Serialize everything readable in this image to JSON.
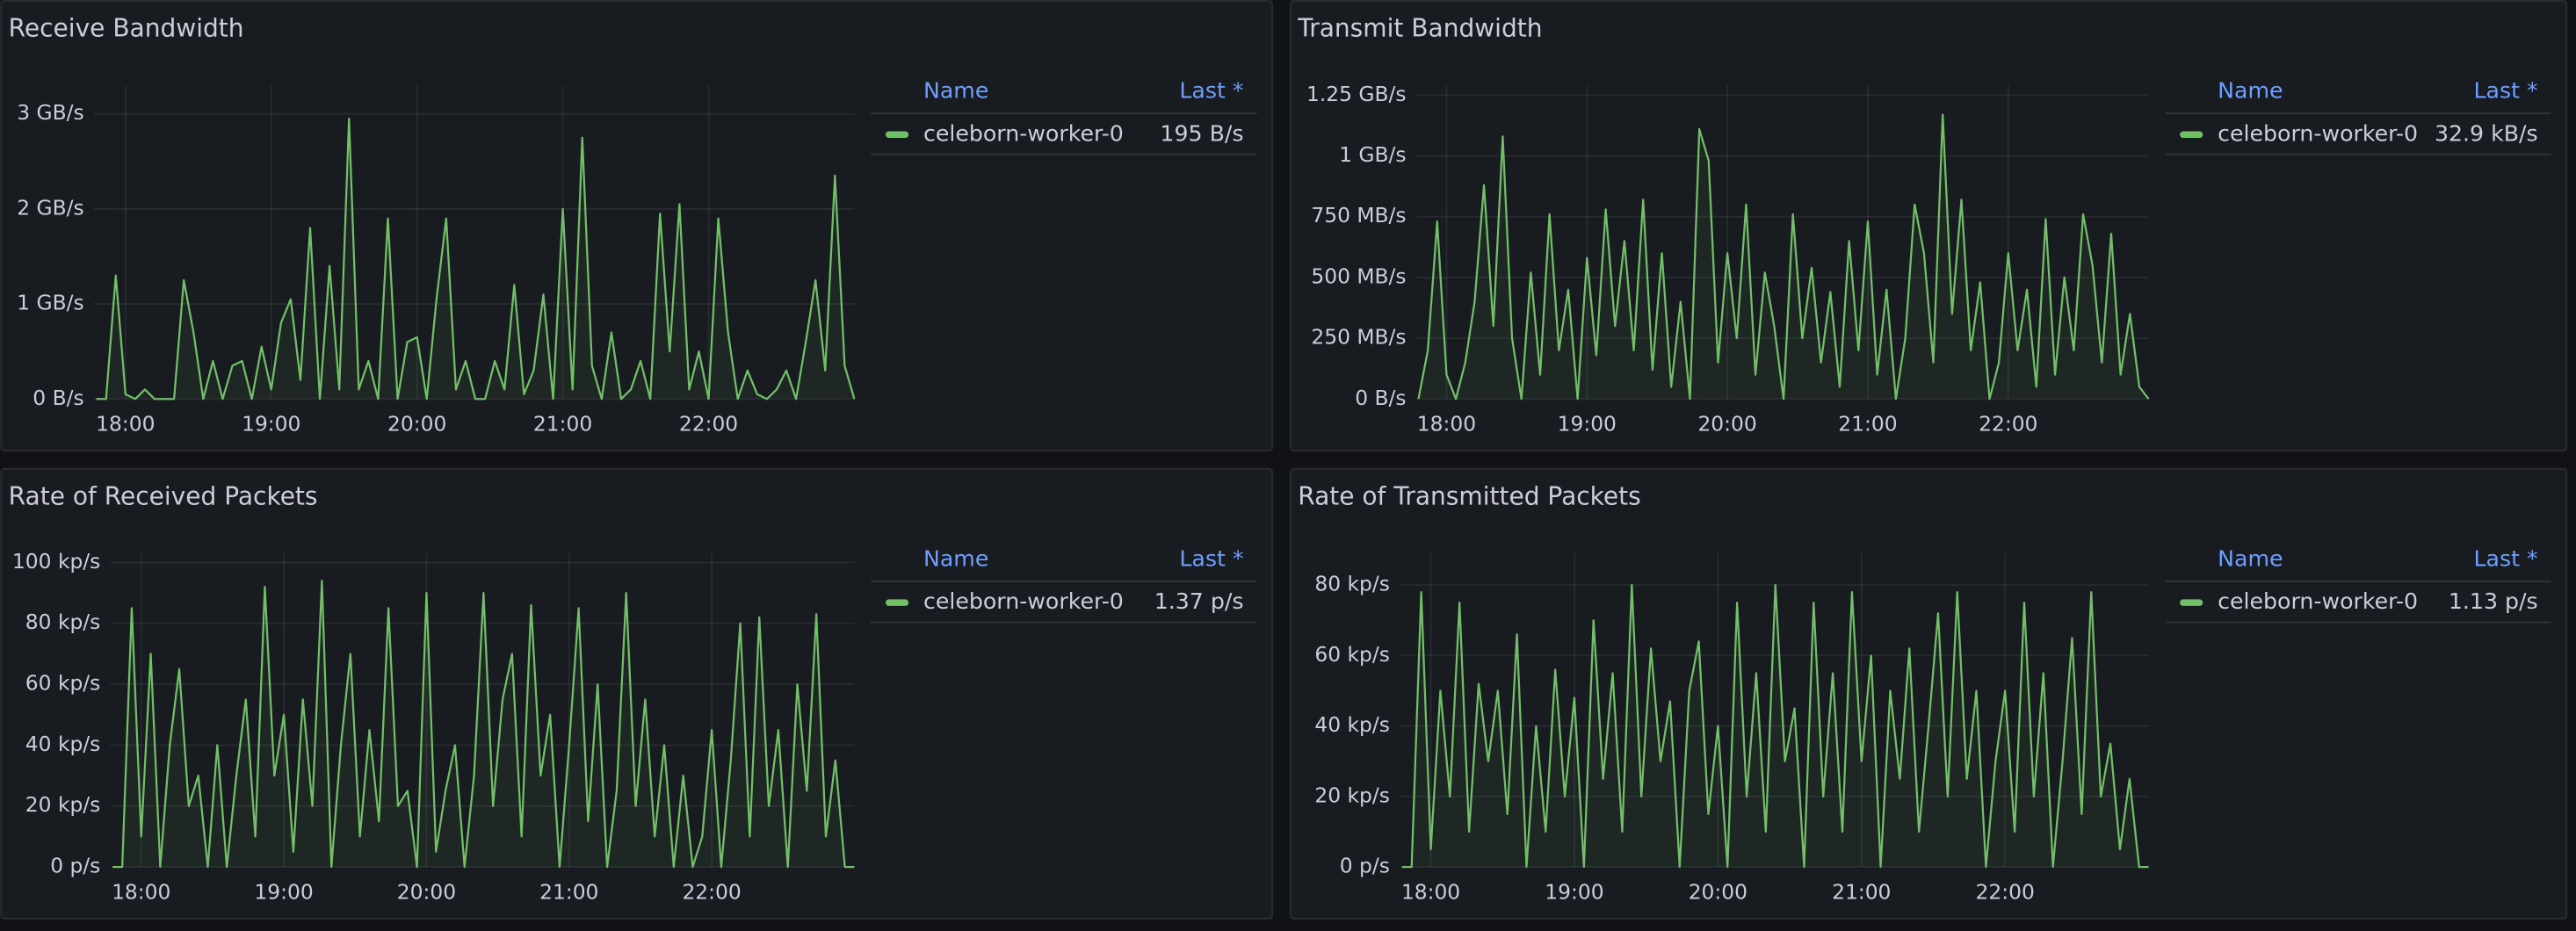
{
  "chart_data": [
    {
      "type": "line",
      "title": "Receive Bandwidth",
      "legend": {
        "headers": [
          "Name",
          "Last *"
        ]
      },
      "xlim": [
        1067,
        1380
      ],
      "xticks": [
        {
          "value": 1080,
          "label": "18:00"
        },
        {
          "value": 1140,
          "label": "19:00"
        },
        {
          "value": 1200,
          "label": "20:00"
        },
        {
          "value": 1260,
          "label": "21:00"
        },
        {
          "value": 1320,
          "label": "22:00"
        }
      ],
      "ylim": [
        0,
        3300000000.0
      ],
      "yticks": [
        {
          "value": 0,
          "label": "0 B/s"
        },
        {
          "value": 1000000000.0,
          "label": "1 GB/s"
        },
        {
          "value": 2000000000.0,
          "label": "2 GB/s"
        },
        {
          "value": 3000000000.0,
          "label": "3 GB/s"
        }
      ],
      "grid": true,
      "x": [
        1068,
        1072,
        1076,
        1080,
        1084,
        1088,
        1092,
        1096,
        1100,
        1104,
        1108,
        1112,
        1116,
        1120,
        1124,
        1128,
        1132,
        1136,
        1140,
        1144,
        1148,
        1152,
        1156,
        1160,
        1164,
        1168,
        1172,
        1176,
        1180,
        1184,
        1188,
        1192,
        1196,
        1200,
        1204,
        1208,
        1212,
        1216,
        1220,
        1224,
        1228,
        1232,
        1236,
        1240,
        1244,
        1248,
        1252,
        1256,
        1260,
        1264,
        1268,
        1272,
        1276,
        1280,
        1284,
        1288,
        1292,
        1296,
        1300,
        1304,
        1308,
        1312,
        1316,
        1320,
        1324,
        1328,
        1332,
        1336,
        1340,
        1344,
        1348,
        1352,
        1356,
        1360,
        1364,
        1368,
        1372,
        1376,
        1380
      ],
      "series": [
        {
          "name": "celeborn-worker-0",
          "color": "#73bf69",
          "last": {
            "value": 195,
            "label": "195 B/s"
          },
          "values": [
            0,
            0,
            1300000000.0,
            50000000.0,
            0,
            100000000.0,
            0,
            0,
            0,
            1250000000.0,
            700000000.0,
            0,
            400000000.0,
            0,
            350000000.0,
            400000000.0,
            0,
            550000000.0,
            100000000.0,
            800000000.0,
            1050000000.0,
            200000000.0,
            1800000000.0,
            0,
            1400000000.0,
            100000000.0,
            2950000000.0,
            100000000.0,
            400000000.0,
            0,
            1900000000.0,
            0,
            600000000.0,
            650000000.0,
            0,
            1050000000.0,
            1900000000.0,
            100000000.0,
            400000000.0,
            0,
            0,
            400000000.0,
            100000000.0,
            1200000000.0,
            50000000.0,
            300000000.0,
            1100000000.0,
            0,
            2000000000.0,
            100000000.0,
            2750000000.0,
            350000000.0,
            0,
            700000000.0,
            0,
            100000000.0,
            400000000.0,
            0,
            1950000000.0,
            500000000.0,
            2050000000.0,
            100000000.0,
            500000000.0,
            0,
            1900000000.0,
            700000000.0,
            0,
            300000000.0,
            50000000.0,
            0,
            100000000.0,
            300000000.0,
            0,
            600000000.0,
            1250000000.0,
            300000000.0,
            2350000000.0,
            350000000.0,
            0
          ]
        }
      ]
    },
    {
      "type": "line",
      "title": "Transmit Bandwidth",
      "legend": {
        "headers": [
          "Name",
          "Last *"
        ]
      },
      "xlim": [
        1067,
        1380
      ],
      "xticks": [
        {
          "value": 1080,
          "label": "18:00"
        },
        {
          "value": 1140,
          "label": "19:00"
        },
        {
          "value": 1200,
          "label": "20:00"
        },
        {
          "value": 1260,
          "label": "21:00"
        },
        {
          "value": 1320,
          "label": "22:00"
        }
      ],
      "ylim": [
        0,
        1290000000.0
      ],
      "yticks": [
        {
          "value": 0,
          "label": "0 B/s"
        },
        {
          "value": 250000000.0,
          "label": "250 MB/s"
        },
        {
          "value": 500000000.0,
          "label": "500 MB/s"
        },
        {
          "value": 750000000.0,
          "label": "750 MB/s"
        },
        {
          "value": 1000000000.0,
          "label": "1 GB/s"
        },
        {
          "value": 1250000000.0,
          "label": "1.25 GB/s"
        }
      ],
      "grid": true,
      "x": [
        1068,
        1072,
        1076,
        1080,
        1084,
        1088,
        1092,
        1096,
        1100,
        1104,
        1108,
        1112,
        1116,
        1120,
        1124,
        1128,
        1132,
        1136,
        1140,
        1144,
        1148,
        1152,
        1156,
        1160,
        1164,
        1168,
        1172,
        1176,
        1180,
        1184,
        1188,
        1192,
        1196,
        1200,
        1204,
        1208,
        1212,
        1216,
        1220,
        1224,
        1228,
        1232,
        1236,
        1240,
        1244,
        1248,
        1252,
        1256,
        1260,
        1264,
        1268,
        1272,
        1276,
        1280,
        1284,
        1288,
        1292,
        1296,
        1300,
        1304,
        1308,
        1312,
        1316,
        1320,
        1324,
        1328,
        1332,
        1336,
        1340,
        1344,
        1348,
        1352,
        1356,
        1360,
        1364,
        1368,
        1372,
        1376,
        1380
      ],
      "series": [
        {
          "name": "celeborn-worker-0",
          "color": "#73bf69",
          "last": {
            "value": 32900,
            "label": "32.9 kB/s"
          },
          "values": [
            0,
            200000000.0,
            730000000.0,
            100000000.0,
            0,
            150000000.0,
            400000000.0,
            880000000.0,
            300000000.0,
            1080000000.0,
            250000000.0,
            0,
            520000000.0,
            100000000.0,
            760000000.0,
            200000000.0,
            450000000.0,
            0,
            580000000.0,
            180000000.0,
            780000000.0,
            300000000.0,
            650000000.0,
            200000000.0,
            820000000.0,
            120000000.0,
            600000000.0,
            50000000.0,
            400000000.0,
            0,
            1110000000.0,
            980000000.0,
            150000000.0,
            600000000.0,
            250000000.0,
            800000000.0,
            100000000.0,
            520000000.0,
            300000000.0,
            0,
            760000000.0,
            250000000.0,
            540000000.0,
            150000000.0,
            440000000.0,
            50000000.0,
            650000000.0,
            200000000.0,
            730000000.0,
            100000000.0,
            450000000.0,
            0,
            250000000.0,
            800000000.0,
            600000000.0,
            150000000.0,
            1170000000.0,
            350000000.0,
            820000000.0,
            200000000.0,
            480000000.0,
            0,
            150000000.0,
            600000000.0,
            200000000.0,
            450000000.0,
            50000000.0,
            740000000.0,
            100000000.0,
            500000000.0,
            200000000.0,
            760000000.0,
            550000000.0,
            150000000.0,
            680000000.0,
            100000000.0,
            350000000.0,
            50000000.0,
            0
          ]
        }
      ]
    },
    {
      "type": "line",
      "title": "Rate of Received Packets",
      "legend": {
        "headers": [
          "Name",
          "Last *"
        ]
      },
      "xlim": [
        1067,
        1380
      ],
      "xticks": [
        {
          "value": 1080,
          "label": "18:00"
        },
        {
          "value": 1140,
          "label": "19:00"
        },
        {
          "value": 1200,
          "label": "20:00"
        },
        {
          "value": 1260,
          "label": "21:00"
        },
        {
          "value": 1320,
          "label": "22:00"
        }
      ],
      "ylim": [
        0,
        103000
      ],
      "yticks": [
        {
          "value": 0,
          "label": "0 p/s"
        },
        {
          "value": 20000,
          "label": "20 kp/s"
        },
        {
          "value": 40000,
          "label": "40 kp/s"
        },
        {
          "value": 60000,
          "label": "60 kp/s"
        },
        {
          "value": 80000,
          "label": "80 kp/s"
        },
        {
          "value": 100000,
          "label": "100 kp/s"
        }
      ],
      "grid": true,
      "x": [
        1068,
        1072,
        1076,
        1080,
        1084,
        1088,
        1092,
        1096,
        1100,
        1104,
        1108,
        1112,
        1116,
        1120,
        1124,
        1128,
        1132,
        1136,
        1140,
        1144,
        1148,
        1152,
        1156,
        1160,
        1164,
        1168,
        1172,
        1176,
        1180,
        1184,
        1188,
        1192,
        1196,
        1200,
        1204,
        1208,
        1212,
        1216,
        1220,
        1224,
        1228,
        1232,
        1236,
        1240,
        1244,
        1248,
        1252,
        1256,
        1260,
        1264,
        1268,
        1272,
        1276,
        1280,
        1284,
        1288,
        1292,
        1296,
        1300,
        1304,
        1308,
        1312,
        1316,
        1320,
        1324,
        1328,
        1332,
        1336,
        1340,
        1344,
        1348,
        1352,
        1356,
        1360,
        1364,
        1368,
        1372,
        1376,
        1380
      ],
      "series": [
        {
          "name": "celeborn-worker-0",
          "color": "#73bf69",
          "last": {
            "value": 1.37,
            "label": "1.37 p/s"
          },
          "values": [
            0,
            0,
            85000,
            10000,
            70000,
            0,
            40000,
            65000,
            20000,
            30000,
            0,
            40000,
            0,
            30000,
            55000,
            10000,
            92000,
            30000,
            50000,
            5000,
            55000,
            20000,
            94000,
            0,
            40000,
            70000,
            10000,
            45000,
            15000,
            85000,
            20000,
            25000,
            0,
            90000,
            5000,
            25000,
            40000,
            0,
            30000,
            90000,
            20000,
            55000,
            70000,
            10000,
            86000,
            30000,
            50000,
            0,
            40000,
            85000,
            15000,
            60000,
            0,
            25000,
            90000,
            20000,
            55000,
            10000,
            40000,
            0,
            30000,
            0,
            10000,
            45000,
            0,
            35000,
            80000,
            10000,
            82000,
            20000,
            45000,
            0,
            60000,
            25000,
            83000,
            10000,
            35000,
            0,
            0
          ]
        }
      ]
    },
    {
      "type": "line",
      "title": "Rate of Transmitted Packets",
      "legend": {
        "headers": [
          "Name",
          "Last *"
        ]
      },
      "xlim": [
        1067,
        1380
      ],
      "xticks": [
        {
          "value": 1080,
          "label": "18:00"
        },
        {
          "value": 1140,
          "label": "19:00"
        },
        {
          "value": 1200,
          "label": "20:00"
        },
        {
          "value": 1260,
          "label": "21:00"
        },
        {
          "value": 1320,
          "label": "22:00"
        }
      ],
      "ylim": [
        0,
        89000
      ],
      "yticks": [
        {
          "value": 0,
          "label": "0 p/s"
        },
        {
          "value": 20000,
          "label": "20 kp/s"
        },
        {
          "value": 40000,
          "label": "40 kp/s"
        },
        {
          "value": 60000,
          "label": "60 kp/s"
        },
        {
          "value": 80000,
          "label": "80 kp/s"
        }
      ],
      "grid": true,
      "x": [
        1068,
        1072,
        1076,
        1080,
        1084,
        1088,
        1092,
        1096,
        1100,
        1104,
        1108,
        1112,
        1116,
        1120,
        1124,
        1128,
        1132,
        1136,
        1140,
        1144,
        1148,
        1152,
        1156,
        1160,
        1164,
        1168,
        1172,
        1176,
        1180,
        1184,
        1188,
        1192,
        1196,
        1200,
        1204,
        1208,
        1212,
        1216,
        1220,
        1224,
        1228,
        1232,
        1236,
        1240,
        1244,
        1248,
        1252,
        1256,
        1260,
        1264,
        1268,
        1272,
        1276,
        1280,
        1284,
        1288,
        1292,
        1296,
        1300,
        1304,
        1308,
        1312,
        1316,
        1320,
        1324,
        1328,
        1332,
        1336,
        1340,
        1344,
        1348,
        1352,
        1356,
        1360,
        1364,
        1368,
        1372,
        1376,
        1380
      ],
      "series": [
        {
          "name": "celeborn-worker-0",
          "color": "#73bf69",
          "last": {
            "value": 1.13,
            "label": "1.13 p/s"
          },
          "values": [
            0,
            0,
            78000,
            5000,
            50000,
            20000,
            75000,
            10000,
            52000,
            30000,
            50000,
            15000,
            66000,
            0,
            40000,
            10000,
            56000,
            20000,
            48000,
            0,
            70000,
            25000,
            55000,
            10000,
            80000,
            20000,
            62000,
            30000,
            47000,
            0,
            50000,
            64000,
            15000,
            40000,
            0,
            75000,
            20000,
            55000,
            10000,
            80000,
            30000,
            45000,
            0,
            75000,
            20000,
            55000,
            10000,
            78000,
            30000,
            60000,
            0,
            50000,
            25000,
            62000,
            10000,
            40000,
            72000,
            20000,
            78000,
            25000,
            50000,
            0,
            30000,
            50000,
            10000,
            75000,
            20000,
            55000,
            0,
            30000,
            65000,
            15000,
            78000,
            20000,
            35000,
            5000,
            25000,
            0,
            0
          ]
        }
      ]
    }
  ]
}
